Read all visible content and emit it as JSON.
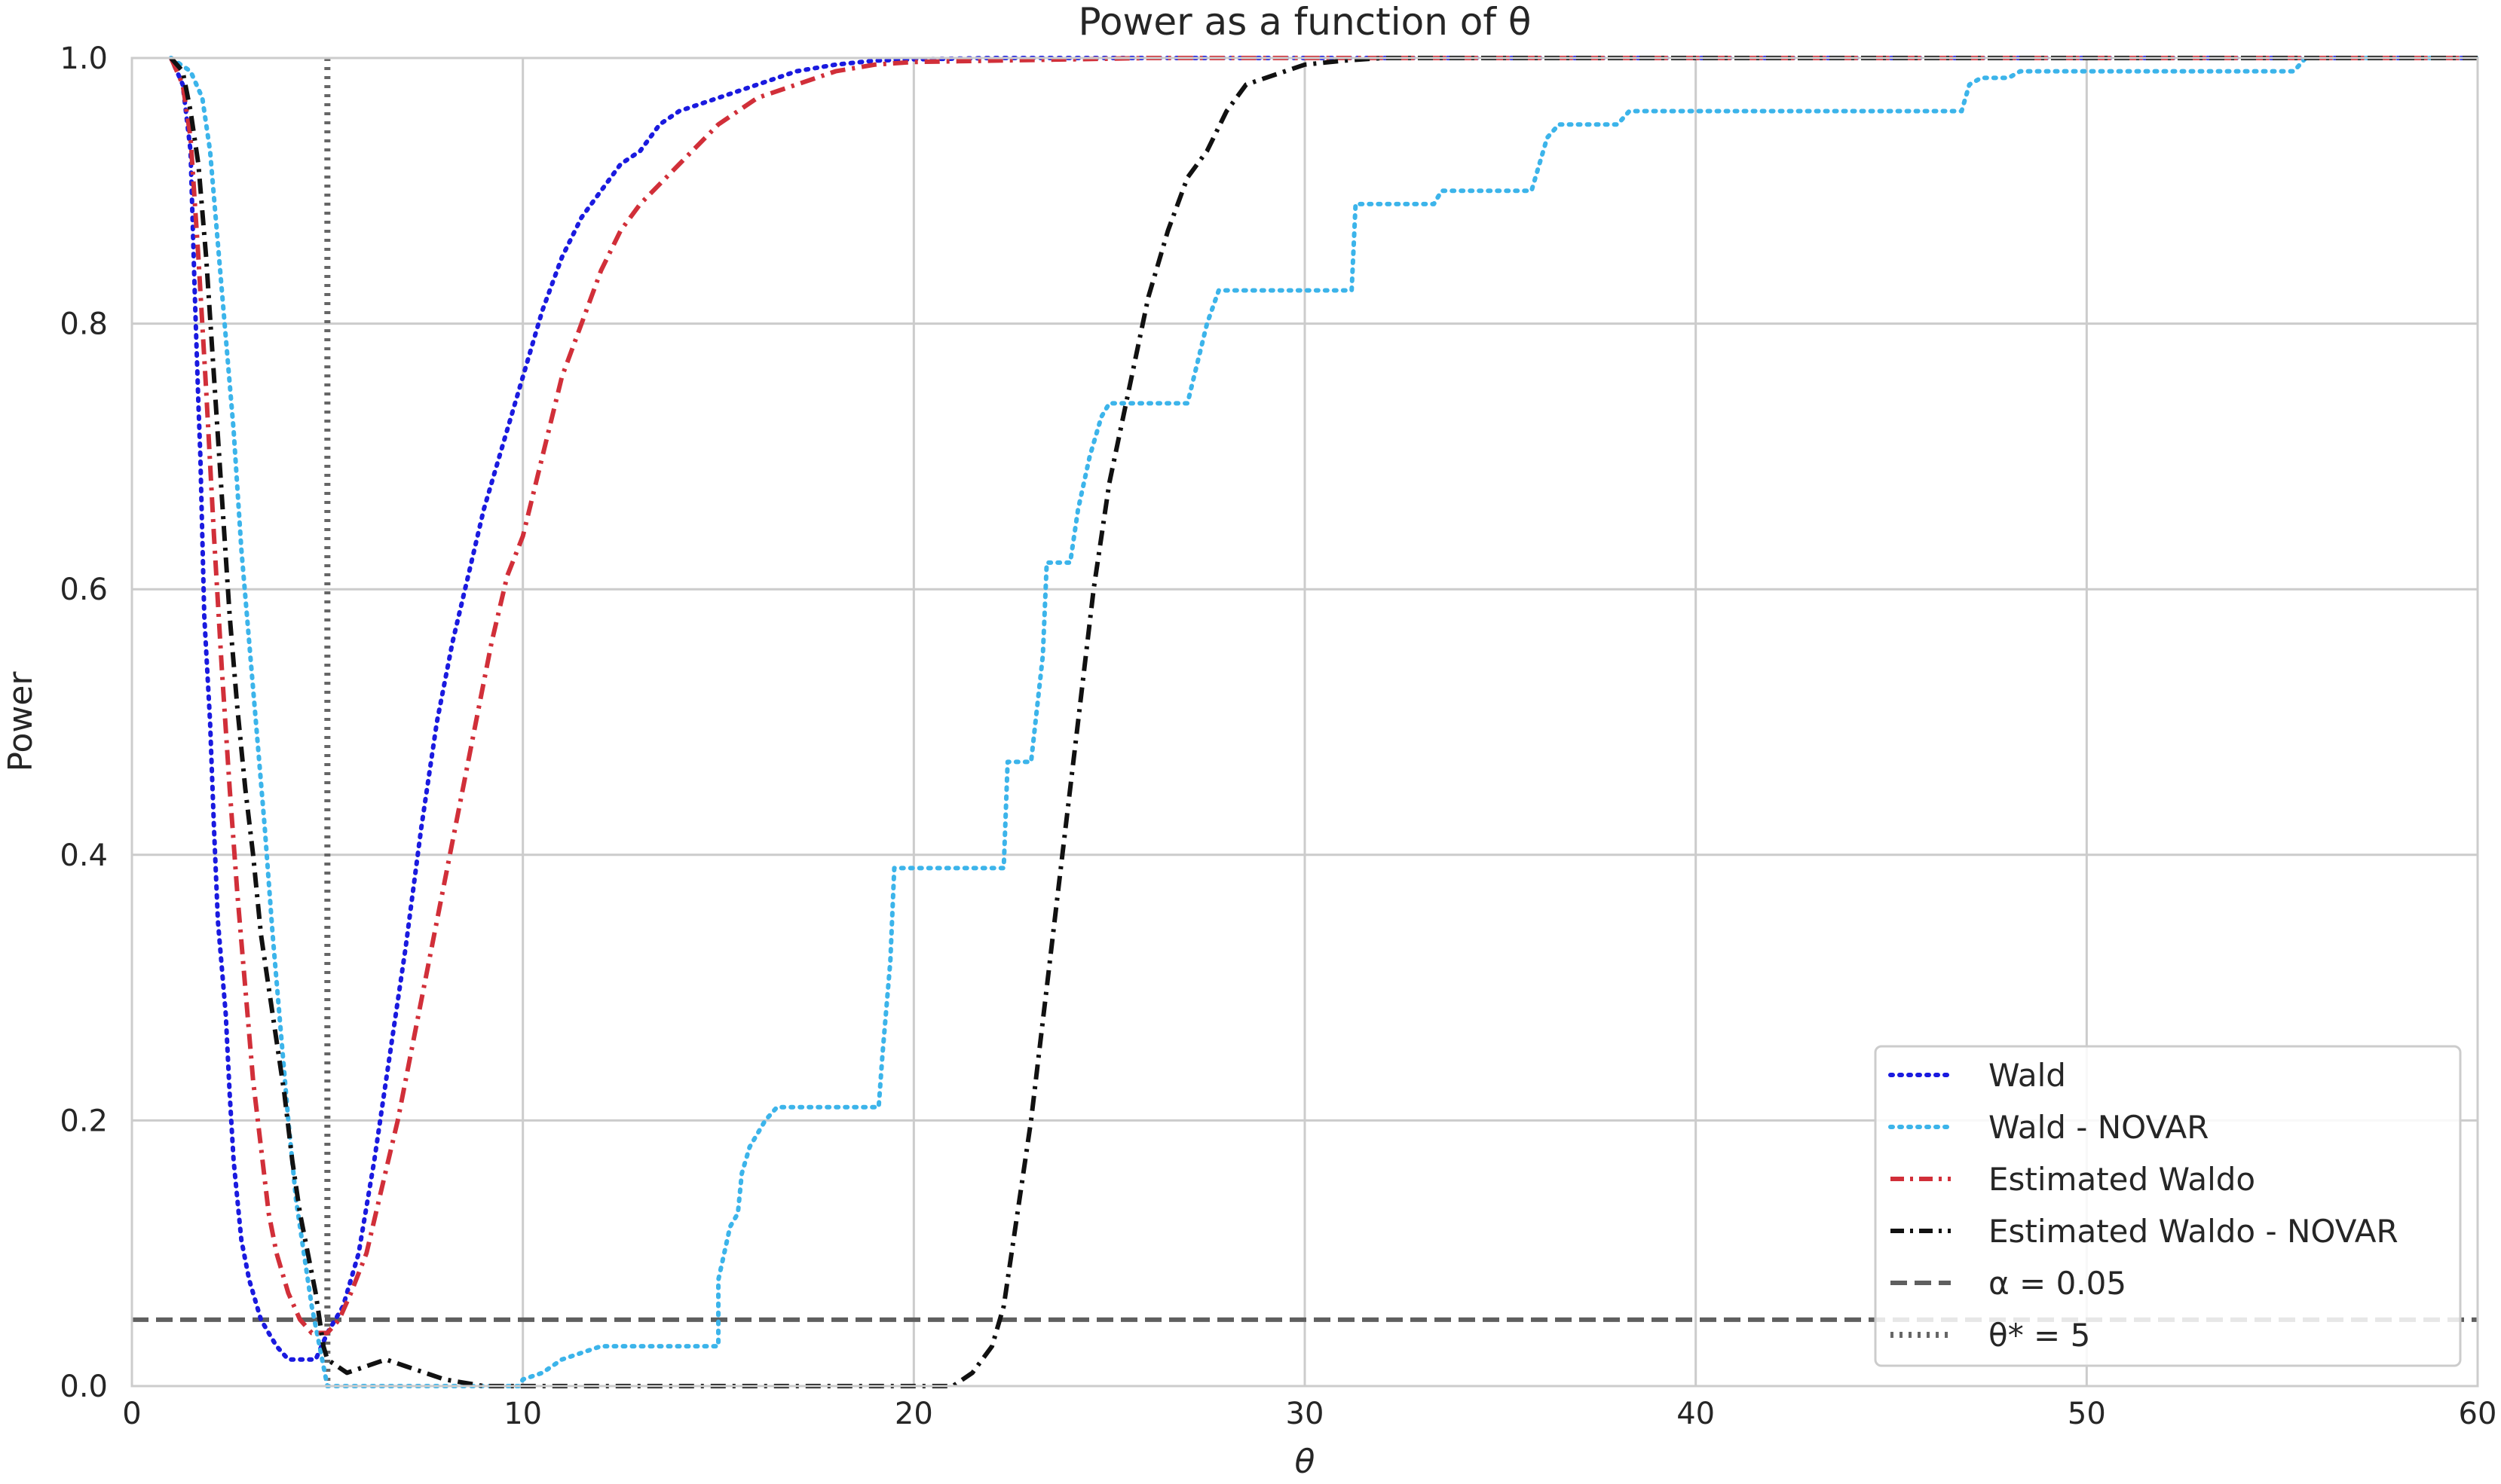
{
  "chart_data": {
    "type": "line",
    "title": "Power as a function of θ",
    "xlabel": "θ",
    "ylabel": "Power",
    "xlim": [
      0,
      60
    ],
    "ylim": [
      0,
      1
    ],
    "xticks": [
      0,
      10,
      20,
      30,
      40,
      50,
      60
    ],
    "yticks": [
      0.0,
      0.2,
      0.4,
      0.6,
      0.8,
      1.0
    ],
    "xtick_labels": [
      "0",
      "10",
      "20",
      "30",
      "40",
      "50",
      "60"
    ],
    "ytick_labels": [
      "0.0",
      "0.2",
      "0.4",
      "0.6",
      "0.8",
      "1.0"
    ],
    "grid": true,
    "legend_position": "bottom-right",
    "series": [
      {
        "name": "Wald",
        "color": "#1a1adf",
        "style": "dotted",
        "step": false,
        "x": [
          1.0,
          1.3,
          1.5,
          1.6,
          1.7,
          1.75,
          1.8,
          1.85,
          2.0,
          2.1,
          2.2,
          2.4,
          2.5,
          2.6,
          2.7,
          2.8,
          3.0,
          3.3,
          3.5,
          3.7,
          4.0,
          4.3,
          4.7,
          5.0,
          5.4,
          5.8,
          6.2,
          6.6,
          7.0,
          7.4,
          7.8,
          8.2,
          8.6,
          9.0,
          9.5,
          10.0,
          10.5,
          11.0,
          11.5,
          12.0,
          12.5,
          13.0,
          13.5,
          14.0,
          15.0,
          16.0,
          17.0,
          18.0,
          19.0,
          20.0,
          22.0,
          24.0,
          26.0,
          28.0,
          30.0,
          40.0,
          50.0,
          60.0
        ],
        "y": [
          1.0,
          0.98,
          0.93,
          0.83,
          0.74,
          0.7,
          0.64,
          0.58,
          0.5,
          0.42,
          0.35,
          0.28,
          0.22,
          0.17,
          0.14,
          0.11,
          0.08,
          0.05,
          0.04,
          0.03,
          0.02,
          0.02,
          0.02,
          0.04,
          0.06,
          0.1,
          0.17,
          0.25,
          0.33,
          0.42,
          0.5,
          0.56,
          0.61,
          0.66,
          0.71,
          0.76,
          0.81,
          0.85,
          0.88,
          0.9,
          0.92,
          0.93,
          0.95,
          0.96,
          0.97,
          0.98,
          0.99,
          0.995,
          0.998,
          0.999,
          1.0,
          1.0,
          1.0,
          1.0,
          1.0,
          1.0,
          1.0,
          1.0
        ]
      },
      {
        "name": "Wald - NOVAR",
        "color": "#3cb4ea",
        "style": "dotted",
        "step": false,
        "x": [
          1.0,
          1.5,
          1.8,
          2.0,
          2.2,
          2.4,
          2.6,
          2.8,
          3.0,
          3.2,
          3.4,
          3.6,
          3.8,
          4.0,
          4.2,
          4.4,
          4.6,
          4.8,
          5.0,
          6.0,
          8.0,
          9.9,
          10.0,
          10.5,
          11.0,
          11.5,
          12.0,
          15.0,
          15.0,
          15.3,
          15.5,
          15.6,
          15.8,
          16.0,
          16.2,
          16.5,
          16.8,
          19.1,
          19.2,
          19.4,
          19.5,
          22.3,
          22.4,
          23.0,
          23.3,
          23.4,
          24.0,
          24.2,
          24.5,
          24.8,
          25.0,
          25.3,
          27.0,
          27.5,
          27.8,
          28.0,
          31.2,
          31.3,
          33.3,
          33.5,
          35.8,
          36.0,
          36.2,
          36.5,
          38.0,
          38.3,
          46.8,
          47.0,
          47.3,
          48.0,
          48.3,
          55.3,
          55.6,
          60.0
        ],
        "y": [
          1.0,
          0.99,
          0.97,
          0.93,
          0.86,
          0.79,
          0.72,
          0.63,
          0.56,
          0.49,
          0.42,
          0.34,
          0.27,
          0.2,
          0.14,
          0.1,
          0.06,
          0.03,
          0.0,
          0.0,
          0.0,
          0.0,
          0.005,
          0.01,
          0.02,
          0.025,
          0.03,
          0.03,
          0.08,
          0.12,
          0.13,
          0.16,
          0.18,
          0.19,
          0.2,
          0.21,
          0.21,
          0.21,
          0.25,
          0.32,
          0.39,
          0.39,
          0.47,
          0.47,
          0.55,
          0.62,
          0.62,
          0.66,
          0.7,
          0.73,
          0.74,
          0.74,
          0.74,
          0.8,
          0.825,
          0.825,
          0.825,
          0.89,
          0.89,
          0.9,
          0.9,
          0.92,
          0.94,
          0.95,
          0.95,
          0.96,
          0.96,
          0.98,
          0.985,
          0.985,
          0.99,
          0.99,
          1.0,
          1.0
        ]
      },
      {
        "name": "Estimated Waldo",
        "color": "#d12f39",
        "style": "dashdot",
        "step": false,
        "x": [
          1.0,
          1.3,
          1.5,
          1.7,
          1.9,
          2.1,
          2.3,
          2.5,
          2.7,
          2.9,
          3.1,
          3.3,
          3.5,
          3.7,
          4.0,
          4.3,
          4.6,
          5.0,
          5.3,
          5.6,
          6.0,
          6.4,
          6.8,
          7.2,
          7.6,
          8.0,
          8.4,
          8.8,
          9.2,
          9.6,
          10.0,
          10.5,
          11.0,
          11.5,
          12.0,
          12.5,
          13.0,
          14.0,
          15.0,
          16.0,
          17.0,
          18.0,
          19.0,
          20.0,
          22.0,
          24.0,
          26.0,
          28.0,
          30.0,
          40.0,
          50.0,
          60.0
        ],
        "y": [
          1.0,
          0.98,
          0.94,
          0.85,
          0.75,
          0.64,
          0.54,
          0.45,
          0.37,
          0.3,
          0.23,
          0.18,
          0.13,
          0.1,
          0.07,
          0.05,
          0.04,
          0.04,
          0.05,
          0.07,
          0.1,
          0.15,
          0.2,
          0.26,
          0.32,
          0.38,
          0.44,
          0.5,
          0.56,
          0.61,
          0.64,
          0.7,
          0.76,
          0.8,
          0.84,
          0.87,
          0.89,
          0.92,
          0.95,
          0.97,
          0.98,
          0.99,
          0.995,
          0.997,
          0.998,
          0.999,
          1.0,
          1.0,
          1.0,
          1.0,
          1.0,
          1.0
        ]
      },
      {
        "name": "Estimated Waldo - NOVAR",
        "color": "#111111",
        "style": "dashdot",
        "step": false,
        "x": [
          1.0,
          1.3,
          1.5,
          1.7,
          1.9,
          2.1,
          2.3,
          2.5,
          2.7,
          2.9,
          3.1,
          3.3,
          3.5,
          3.7,
          3.9,
          4.1,
          4.3,
          4.5,
          4.7,
          4.9,
          5.0,
          5.5,
          6.0,
          6.5,
          7.0,
          7.5,
          8.0,
          9.0,
          10.0,
          15.0,
          21.0,
          21.5,
          22.0,
          22.3,
          22.6,
          23.0,
          23.4,
          23.8,
          24.2,
          24.6,
          25.0,
          25.5,
          26.0,
          26.5,
          27.0,
          27.5,
          28.0,
          28.5,
          29.0,
          29.5,
          30.0,
          31.0,
          32.0,
          34.0,
          36.0,
          40.0,
          50.0,
          60.0
        ],
        "y": [
          1.0,
          0.99,
          0.96,
          0.92,
          0.85,
          0.76,
          0.67,
          0.58,
          0.51,
          0.45,
          0.4,
          0.34,
          0.3,
          0.26,
          0.22,
          0.17,
          0.13,
          0.1,
          0.07,
          0.03,
          0.02,
          0.01,
          0.015,
          0.02,
          0.015,
          0.01,
          0.005,
          0.0,
          0.0,
          0.0,
          0.0,
          0.01,
          0.03,
          0.06,
          0.12,
          0.2,
          0.3,
          0.4,
          0.5,
          0.6,
          0.68,
          0.75,
          0.82,
          0.87,
          0.91,
          0.93,
          0.96,
          0.98,
          0.985,
          0.99,
          0.995,
          0.998,
          1.0,
          1.0,
          1.0,
          1.0,
          1.0,
          1.0
        ]
      }
    ],
    "reference_lines": [
      {
        "name": "α = 0.05",
        "orientation": "horizontal",
        "value": 0.05,
        "color": "#5f5f5f",
        "style": "dashed"
      },
      {
        "name": "θ* = 5",
        "orientation": "vertical",
        "value": 5,
        "color": "#666666",
        "style": "dotted"
      }
    ],
    "legend_labels": {
      "wald": "Wald",
      "wald_novar": "Wald - NOVAR",
      "estimated_waldo": "Estimated Waldo",
      "estimated_waldo_novar": "Estimated Waldo - NOVAR",
      "alpha": "α = 0.05",
      "theta_star": "θ* = 5"
    }
  }
}
